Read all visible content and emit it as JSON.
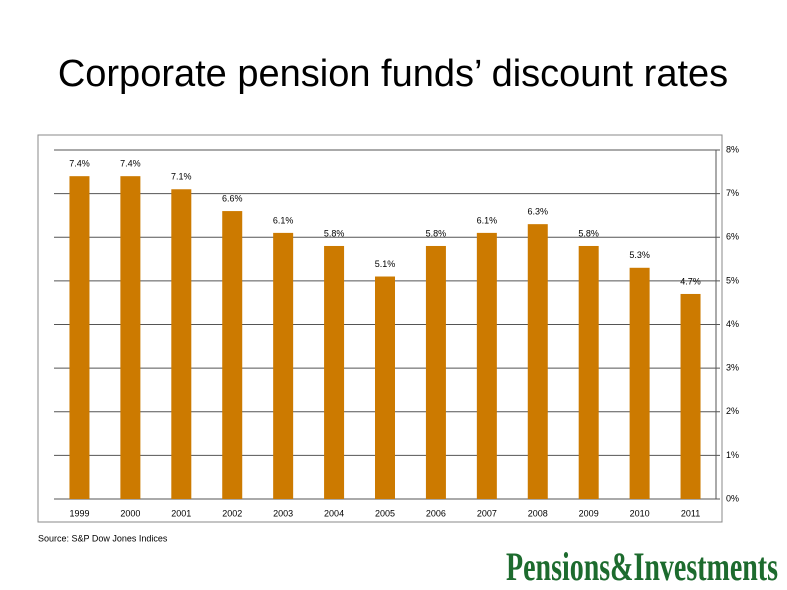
{
  "chart_data": {
    "type": "bar",
    "title": "Corporate pension funds’ discount rates",
    "categories": [
      "1999",
      "2000",
      "2001",
      "2002",
      "2003",
      "2004",
      "2005",
      "2006",
      "2007",
      "2008",
      "2009",
      "2010",
      "2011"
    ],
    "values": [
      7.4,
      7.4,
      7.1,
      6.6,
      6.1,
      5.8,
      5.1,
      5.8,
      6.1,
      6.3,
      5.8,
      5.3,
      4.7
    ],
    "value_labels": [
      "7.4%",
      "7.4%",
      "7.1%",
      "6.6%",
      "6.1%",
      "5.8%",
      "5.1%",
      "5.8%",
      "6.1%",
      "6.3%",
      "5.8%",
      "5.3%",
      "4.7%"
    ],
    "color": "#cc7a00",
    "ylim": [
      0,
      8
    ],
    "yticks": [
      {
        "value": 0,
        "label": "0%"
      },
      {
        "value": 1,
        "label": "1%"
      },
      {
        "value": 2,
        "label": "2%"
      },
      {
        "value": 3,
        "label": "3%"
      },
      {
        "value": 4,
        "label": "4%"
      },
      {
        "value": 5,
        "label": "5%"
      },
      {
        "value": 6,
        "label": "6%"
      },
      {
        "value": 7,
        "label": "7%"
      },
      {
        "value": 8,
        "label": "8%"
      }
    ],
    "y_axis_side": "right",
    "grid": true,
    "source": "Source: S&P Dow Jones Indices",
    "logo": "Pensions&Investments"
  }
}
